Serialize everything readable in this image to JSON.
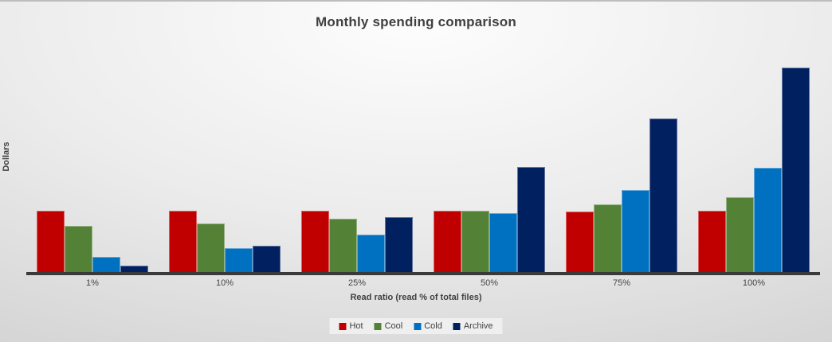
{
  "chart_data": {
    "type": "bar",
    "title": "Monthly spending comparison",
    "xlabel": "Read ratio (read % of total files)",
    "ylabel": "Dollars",
    "categories": [
      "1%",
      "10%",
      "25%",
      "50%",
      "75%",
      "100%"
    ],
    "series": [
      {
        "name": "Hot",
        "color": "#c00000",
        "values": [
          78,
          78,
          78,
          78,
          77,
          78
        ]
      },
      {
        "name": "Cool",
        "color": "#538135",
        "values": [
          59,
          62,
          68,
          78,
          86,
          95
        ]
      },
      {
        "name": "Cold",
        "color": "#0070c0",
        "values": [
          20,
          31,
          48,
          75,
          104,
          132
        ]
      },
      {
        "name": "Archive",
        "color": "#002060",
        "values": [
          9,
          34,
          70,
          133,
          194,
          258
        ]
      }
    ],
    "ylim": [
      0,
      285
    ],
    "value_units": "relative (y axis unlabeled)",
    "grid": false,
    "y_tick_labels": "none",
    "legend_position": "bottom",
    "colors": {
      "title_text": "#404040",
      "axis_line": "#3a3a3a",
      "legend_background": "#efefef"
    }
  }
}
